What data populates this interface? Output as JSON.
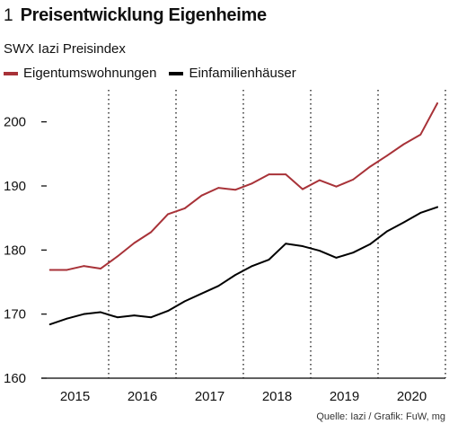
{
  "header": {
    "figure_number": "1",
    "title": "Preisentwicklung Eigenheime",
    "subtitle": "SWX Iazi Preisindex"
  },
  "source": "Quelle: Iazi / Grafik: FuW, mg",
  "colors": {
    "eigentumswohnungen": "#a83238",
    "einfamilienhaeuser": "#000000",
    "grid": "#000000",
    "axis": "#000000"
  },
  "chart_data": {
    "type": "line",
    "title": "Preisentwicklung Eigenheime",
    "subtitle": "SWX Iazi Preisindex",
    "xlabel": "",
    "ylabel": "",
    "grid": "vertical dotted lines at year boundaries",
    "legend_position": "top-left",
    "x_unit": "year (quarterly)",
    "xlim": [
      2014.5,
      2020.5
    ],
    "ylim": [
      160,
      205
    ],
    "y_ticks": [
      160,
      170,
      180,
      190,
      200
    ],
    "x_tick_labels": [
      "2015",
      "2016",
      "2017",
      "2018",
      "2019",
      "2020"
    ],
    "x_tick_positions": [
      2015.0,
      2016.0,
      2017.0,
      2018.0,
      2019.0,
      2020.0
    ],
    "x_gridlines": [
      2015.5,
      2016.5,
      2017.5,
      2018.5,
      2019.5,
      2020.5
    ],
    "x": [
      2014.63,
      2014.88,
      2015.13,
      2015.38,
      2015.63,
      2015.88,
      2016.13,
      2016.38,
      2016.63,
      2016.88,
      2017.13,
      2017.38,
      2017.63,
      2017.88,
      2018.13,
      2018.38,
      2018.63,
      2018.88,
      2019.13,
      2019.38,
      2019.63,
      2019.88,
      2020.13,
      2020.38
    ],
    "series": [
      {
        "name": "Eigentumswohnungen",
        "color": "#a83238",
        "values": [
          176.9,
          176.9,
          177.5,
          177.1,
          179.0,
          181.1,
          182.8,
          185.6,
          186.5,
          188.5,
          189.7,
          189.4,
          190.4,
          191.8,
          191.8,
          189.5,
          190.9,
          189.9,
          191.0,
          193.0,
          194.7,
          196.5,
          198.0,
          202.9
        ]
      },
      {
        "name": "Einfamilienhäuser",
        "color": "#000000",
        "values": [
          168.4,
          169.3,
          170.0,
          170.3,
          169.5,
          169.8,
          169.5,
          170.5,
          172.0,
          173.2,
          174.4,
          176.1,
          177.5,
          178.5,
          181.0,
          180.6,
          179.9,
          178.8,
          179.6,
          180.9,
          182.9,
          184.3,
          185.8,
          186.7
        ]
      }
    ]
  }
}
